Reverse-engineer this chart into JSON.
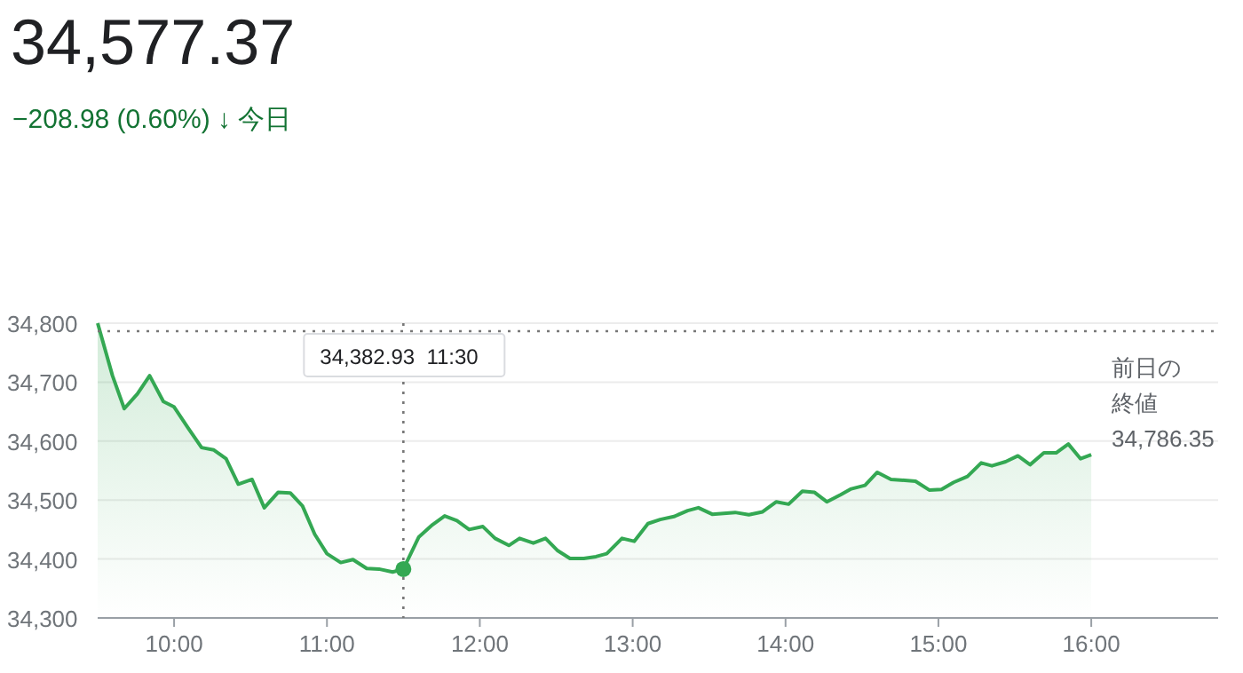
{
  "chart_data": {
    "type": "area",
    "title": "34,577.37",
    "subtitle": "−208.98 (0.60%) ↓ 今日",
    "series": [
      {
        "color": "#34a853",
        "x": [
          9.5,
          9.597,
          9.674,
          9.76,
          9.84,
          9.93,
          10.0,
          10.09,
          10.18,
          10.26,
          10.34,
          10.42,
          10.51,
          10.59,
          10.68,
          10.76,
          10.84,
          10.92,
          11.0,
          11.09,
          11.17,
          11.26,
          11.34,
          11.43,
          11.5,
          11.6,
          11.69,
          11.77,
          11.85,
          11.93,
          12.02,
          12.1,
          12.19,
          12.26,
          12.35,
          12.43,
          12.51,
          12.59,
          12.68,
          12.76,
          12.83,
          12.93,
          13.01,
          13.1,
          13.18,
          13.27,
          13.36,
          13.43,
          13.52,
          13.67,
          13.76,
          13.85,
          13.94,
          14.02,
          14.11,
          14.19,
          14.27,
          14.36,
          14.43,
          14.52,
          14.6,
          14.69,
          14.85,
          14.94,
          15.02,
          15.1,
          15.19,
          15.28,
          15.35,
          15.44,
          15.52,
          15.6,
          15.69,
          15.77,
          15.85,
          15.93,
          16.0
        ],
        "values": [
          34800,
          34711,
          34655,
          34680,
          34711,
          34667,
          34658,
          34623,
          34589,
          34585,
          34570,
          34527,
          34535,
          34487,
          34513,
          34512,
          34490,
          34442,
          34409,
          34394,
          34399,
          34384,
          34383,
          34378,
          34383,
          34437,
          34458,
          34473,
          34465,
          34450,
          34455,
          34435,
          34423,
          34435,
          34427,
          34435,
          34414,
          34401,
          34401,
          34404,
          34409,
          34435,
          34430,
          34460,
          34467,
          34472,
          34482,
          34487,
          34476,
          34479,
          34475,
          34480,
          34497,
          34493,
          34515,
          34513,
          34497,
          34509,
          34519,
          34525,
          34547,
          34535,
          34532,
          34517,
          34518,
          34530,
          34540,
          34563,
          34558,
          34565,
          34575,
          34560,
          34580,
          34580,
          34595,
          34570,
          34577
        ]
      }
    ],
    "xlim": [
      9.5,
      16.83
    ],
    "xticks": [
      {
        "value": 10,
        "label": "10:00"
      },
      {
        "value": 11,
        "label": "11:00"
      },
      {
        "value": 12,
        "label": "12:00"
      },
      {
        "value": 13,
        "label": "13:00"
      },
      {
        "value": 14,
        "label": "14:00"
      },
      {
        "value": 15,
        "label": "15:00"
      },
      {
        "value": 16,
        "label": "16:00"
      }
    ],
    "ylim": [
      34300,
      34800
    ],
    "yticks": [
      {
        "value": 34300,
        "label": "34,300"
      },
      {
        "value": 34400,
        "label": "34,400"
      },
      {
        "value": 34500,
        "label": "34,500"
      },
      {
        "value": 34600,
        "label": "34,600"
      },
      {
        "value": 34700,
        "label": "34,700"
      },
      {
        "value": 34800,
        "label": "34,800"
      }
    ],
    "grid": "y",
    "ref_lines": [
      {
        "axis": "y",
        "value": 34786.35,
        "label": "前日の終値\n34,786.35",
        "line_style": "dotted",
        "color": "#777777"
      },
      {
        "axis": "x",
        "value": 11.5,
        "line_style": "dotted",
        "color": "#777777"
      }
    ],
    "annotations": [
      "34,382.93  11:30"
    ]
  }
}
